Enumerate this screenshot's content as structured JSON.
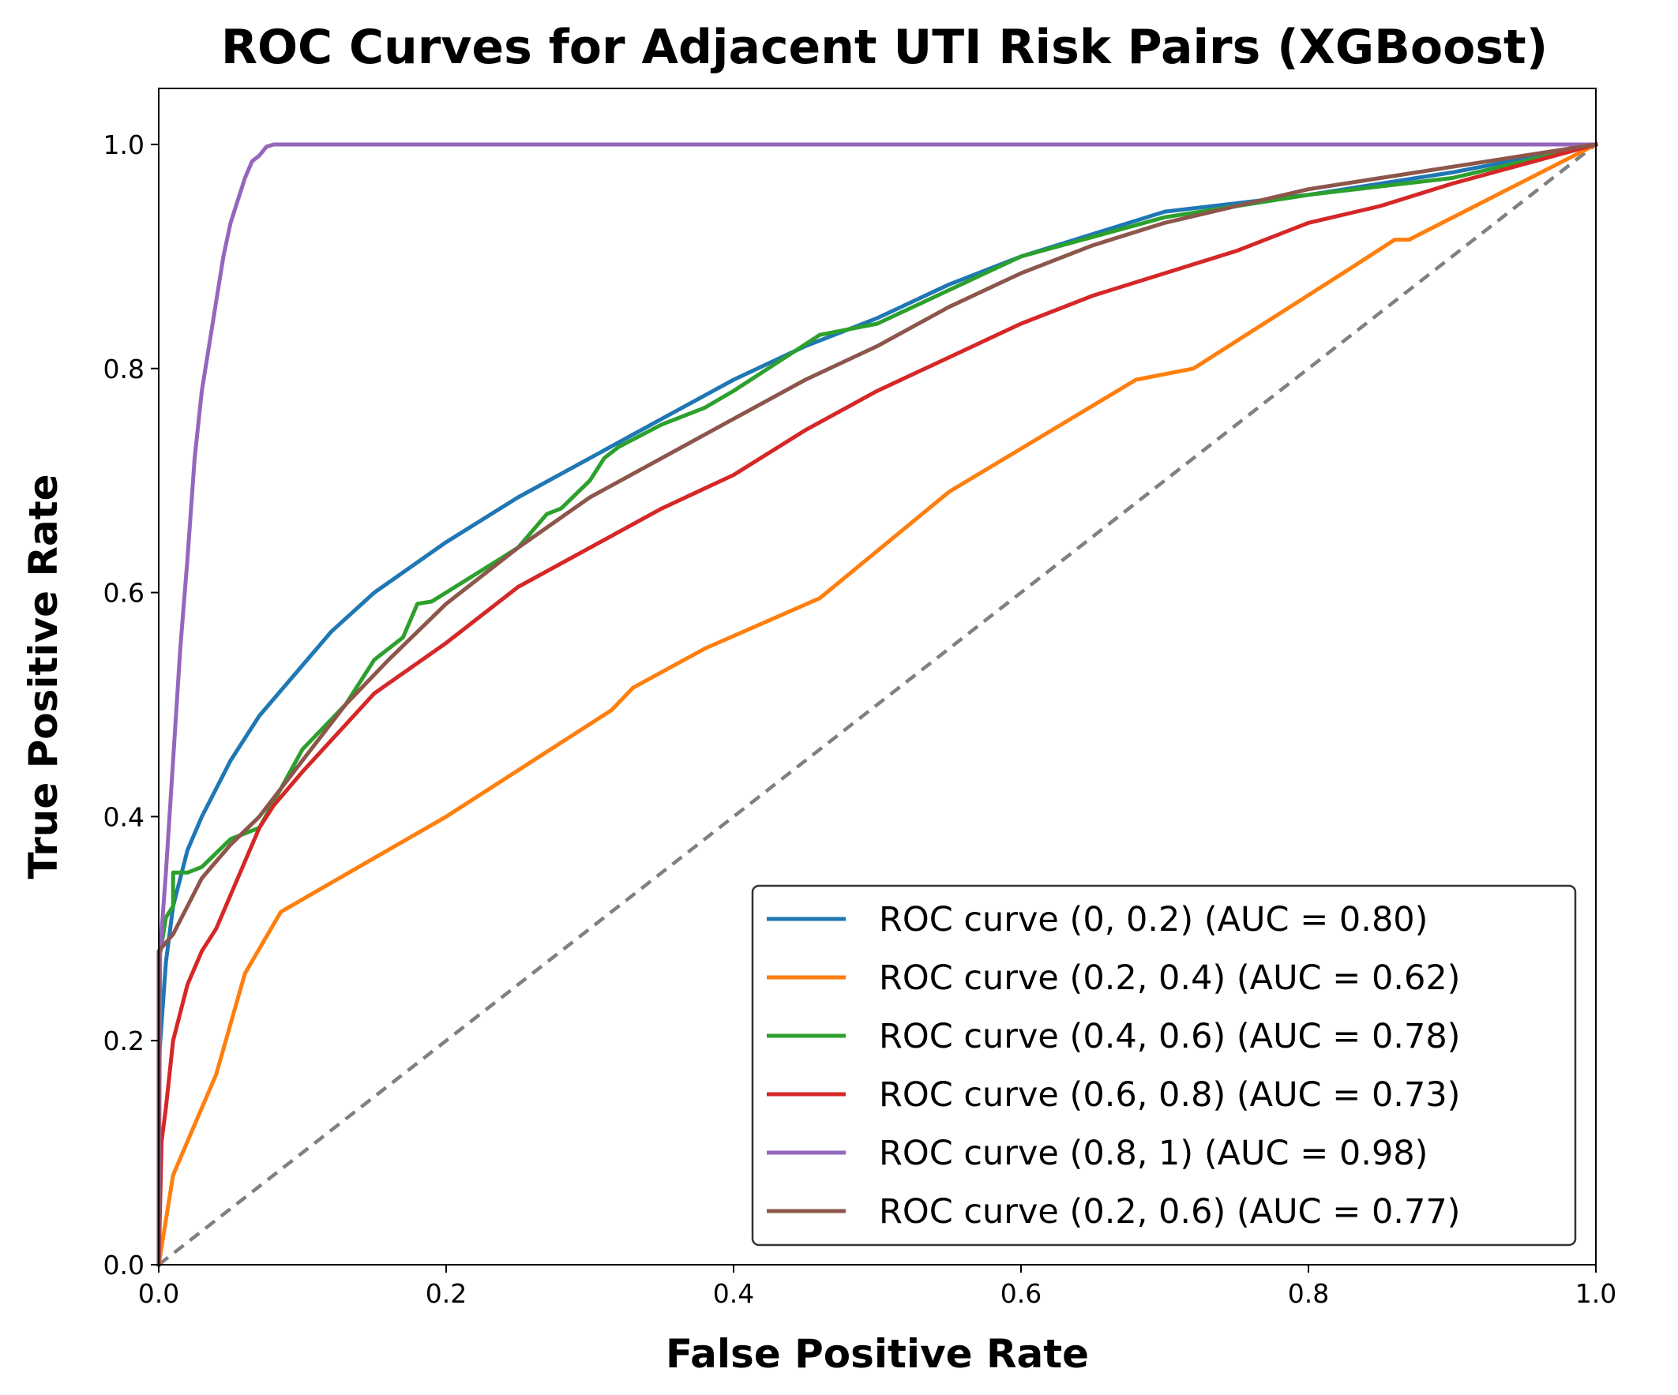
{
  "chart_data": {
    "type": "line",
    "title": "ROC Curves for Adjacent UTI Risk Pairs (XGBoost)",
    "xlabel": "False Positive Rate",
    "ylabel": "True Positive Rate",
    "xlim": [
      0.0,
      1.0
    ],
    "ylim": [
      0.0,
      1.05
    ],
    "xticks": [
      "0.0",
      "0.2",
      "0.4",
      "0.6",
      "0.8",
      "1.0"
    ],
    "yticks": [
      "0.0",
      "0.2",
      "0.4",
      "0.6",
      "0.8",
      "1.0"
    ],
    "xtick_values": [
      0.0,
      0.2,
      0.4,
      0.6,
      0.8,
      1.0
    ],
    "ytick_values": [
      0.0,
      0.2,
      0.4,
      0.6,
      0.8,
      1.0
    ],
    "legend_position": "lower-right",
    "diagonal": {
      "x": [
        0,
        1
      ],
      "y": [
        0,
        1
      ],
      "color": "#808080",
      "style": "dashed"
    },
    "series": [
      {
        "name": "ROC curve (0, 0.2) (AUC = 0.80)",
        "color": "#1f77b4",
        "x": [
          0,
          0.0,
          0.005,
          0.01,
          0.02,
          0.03,
          0.05,
          0.07,
          0.09,
          0.12,
          0.15,
          0.2,
          0.25,
          0.3,
          0.35,
          0.4,
          0.45,
          0.5,
          0.55,
          0.6,
          0.65,
          0.7,
          0.8,
          0.9,
          1.0
        ],
        "y": [
          0,
          0.18,
          0.27,
          0.32,
          0.37,
          0.4,
          0.45,
          0.49,
          0.52,
          0.565,
          0.6,
          0.645,
          0.685,
          0.72,
          0.755,
          0.79,
          0.82,
          0.845,
          0.875,
          0.9,
          0.92,
          0.94,
          0.955,
          0.975,
          1.0
        ]
      },
      {
        "name": "ROC curve (0.2, 0.4) (AUC = 0.62)",
        "color": "#ff7f0e",
        "x": [
          0,
          0.01,
          0.02,
          0.04,
          0.06,
          0.085,
          0.2,
          0.315,
          0.33,
          0.38,
          0.46,
          0.55,
          0.68,
          0.72,
          0.83,
          0.86,
          0.87,
          1.0
        ],
        "y": [
          0,
          0.08,
          0.11,
          0.17,
          0.26,
          0.315,
          0.4,
          0.495,
          0.515,
          0.55,
          0.595,
          0.69,
          0.79,
          0.8,
          0.89,
          0.915,
          0.915,
          1.0
        ]
      },
      {
        "name": "ROC curve (0.4, 0.6) (AUC = 0.78)",
        "color": "#2ca02c",
        "x": [
          0,
          0.0,
          0.005,
          0.01,
          0.01,
          0.02,
          0.03,
          0.05,
          0.07,
          0.1,
          0.13,
          0.15,
          0.17,
          0.18,
          0.19,
          0.25,
          0.27,
          0.28,
          0.3,
          0.31,
          0.32,
          0.35,
          0.38,
          0.4,
          0.43,
          0.46,
          0.5,
          0.55,
          0.6,
          0.7,
          0.8,
          0.9,
          1.0
        ],
        "y": [
          0,
          0.27,
          0.31,
          0.32,
          0.35,
          0.35,
          0.355,
          0.38,
          0.39,
          0.46,
          0.5,
          0.54,
          0.56,
          0.59,
          0.592,
          0.64,
          0.67,
          0.675,
          0.7,
          0.72,
          0.73,
          0.75,
          0.765,
          0.78,
          0.805,
          0.83,
          0.84,
          0.87,
          0.9,
          0.935,
          0.955,
          0.97,
          1.0
        ]
      },
      {
        "name": "ROC curve (0.6, 0.8) (AUC = 0.73)",
        "color": "#d62728",
        "x": [
          0,
          0.002,
          0.005,
          0.01,
          0.02,
          0.03,
          0.04,
          0.05,
          0.06,
          0.07,
          0.08,
          0.1,
          0.15,
          0.2,
          0.25,
          0.3,
          0.35,
          0.4,
          0.45,
          0.5,
          0.55,
          0.6,
          0.65,
          0.7,
          0.75,
          0.8,
          0.85,
          0.9,
          1.0
        ],
        "y": [
          0,
          0.11,
          0.14,
          0.2,
          0.25,
          0.28,
          0.3,
          0.33,
          0.36,
          0.39,
          0.41,
          0.44,
          0.51,
          0.555,
          0.605,
          0.64,
          0.675,
          0.705,
          0.745,
          0.78,
          0.81,
          0.84,
          0.865,
          0.885,
          0.905,
          0.93,
          0.945,
          0.965,
          1.0
        ]
      },
      {
        "name": "ROC curve (0.8, 1) (AUC = 0.98)",
        "color": "#9467bd",
        "x": [
          0,
          0.001,
          0.005,
          0.01,
          0.015,
          0.02,
          0.025,
          0.03,
          0.035,
          0.04,
          0.045,
          0.05,
          0.055,
          0.06,
          0.065,
          0.07,
          0.075,
          0.08,
          0.085,
          1.0
        ],
        "y": [
          0,
          0.28,
          0.35,
          0.45,
          0.55,
          0.63,
          0.72,
          0.78,
          0.82,
          0.86,
          0.9,
          0.93,
          0.95,
          0.97,
          0.985,
          0.99,
          0.998,
          1.0,
          1.0,
          1.0
        ]
      },
      {
        "name": "ROC curve (0.2, 0.6) (AUC = 0.77)",
        "color": "#8c564b",
        "x": [
          0,
          0.0,
          0.01,
          0.02,
          0.03,
          0.05,
          0.07,
          0.1,
          0.13,
          0.16,
          0.2,
          0.25,
          0.3,
          0.35,
          0.4,
          0.45,
          0.5,
          0.55,
          0.6,
          0.65,
          0.7,
          0.75,
          0.8,
          0.85,
          0.9,
          1.0
        ],
        "y": [
          0,
          0.28,
          0.295,
          0.32,
          0.345,
          0.375,
          0.4,
          0.45,
          0.5,
          0.54,
          0.59,
          0.64,
          0.685,
          0.72,
          0.755,
          0.79,
          0.82,
          0.855,
          0.885,
          0.91,
          0.93,
          0.945,
          0.96,
          0.97,
          0.98,
          1.0
        ]
      }
    ]
  }
}
